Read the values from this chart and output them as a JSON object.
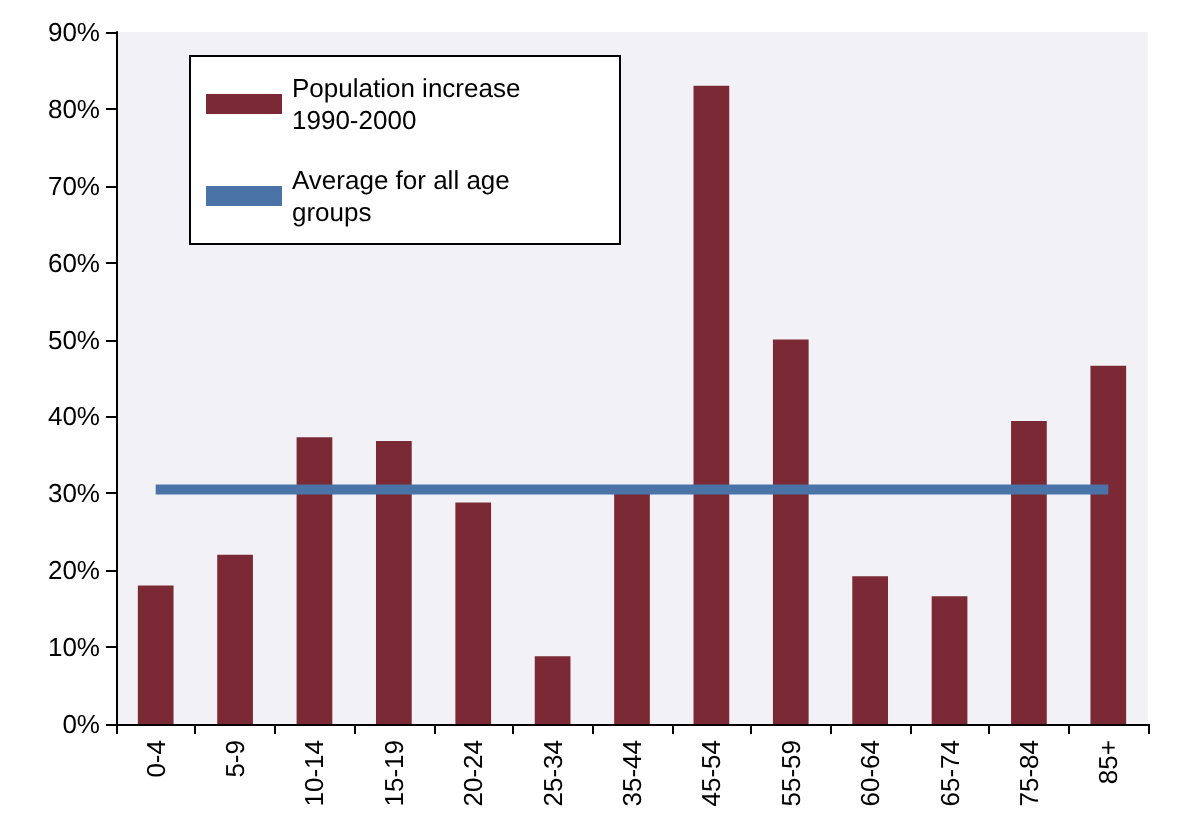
{
  "chart_data": {
    "type": "bar",
    "categories": [
      "0-4",
      "5-9",
      "10-14",
      "15-19",
      "20-24",
      "25-34",
      "35-44",
      "45-54",
      "55-59",
      "60-64",
      "65-74",
      "75-84",
      "85+"
    ],
    "series": [
      {
        "name": "Population increase 1990-2000",
        "color": "#7b2a35",
        "values": [
          18,
          22,
          37.3,
          36.8,
          28.8,
          8.8,
          30,
          83,
          50,
          19.2,
          16.6,
          39.4,
          46.6
        ]
      },
      {
        "name": "Average for all age groups",
        "type": "line",
        "color": "#4a74a8",
        "values": [
          30.5,
          30.5,
          30.5,
          30.5,
          30.5,
          30.5,
          30.5,
          30.5,
          30.5,
          30.5,
          30.5,
          30.5,
          30.5
        ]
      }
    ],
    "ylim": [
      0,
      90
    ],
    "yticks": [
      {
        "value": 0,
        "label": "0%"
      },
      {
        "value": 10,
        "label": "10%"
      },
      {
        "value": 20,
        "label": "20%"
      },
      {
        "value": 30,
        "label": "30%"
      },
      {
        "value": 40,
        "label": "40%"
      },
      {
        "value": 50,
        "label": "50%"
      },
      {
        "value": 60,
        "label": "60%"
      },
      {
        "value": 70,
        "label": "70%"
      },
      {
        "value": 80,
        "label": "80%"
      },
      {
        "value": 90,
        "label": "90%"
      }
    ],
    "grid": false,
    "legend": "top left",
    "marker": "none"
  }
}
